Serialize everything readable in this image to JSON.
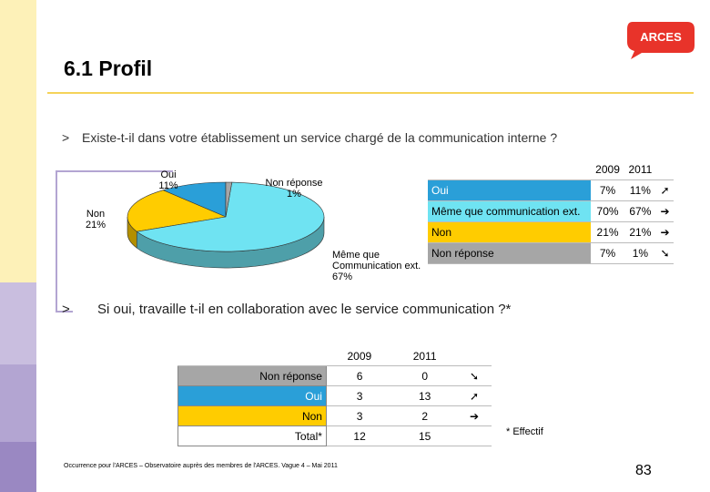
{
  "logo": "ARCES",
  "header": {
    "title": "6.1 Profil"
  },
  "question1": "Existe-t-il dans votre établissement un service chargé de la communication interne ?",
  "bullet": ">",
  "chart_data": {
    "type": "pie",
    "categories": [
      "Oui",
      "Non",
      "Même que Communication ext.",
      "Non réponse"
    ],
    "values": [
      11,
      21,
      67,
      1
    ],
    "value_labels": [
      "11%",
      "21%",
      "67%",
      "1%"
    ],
    "colors": [
      "#2a9fd8",
      "#ffcc00",
      "#6fe3f2",
      "#a6a6a6"
    ]
  },
  "table1": {
    "columns": [
      "2009",
      "2011"
    ],
    "rows": [
      [
        "Oui",
        "7%",
        "11%",
        "➚"
      ],
      [
        "Même que communication ext.",
        "70%",
        "67%",
        "➔"
      ],
      [
        "Non",
        "21%",
        "21%",
        "➔"
      ],
      [
        "Non réponse",
        "7%",
        "1%",
        "➘"
      ]
    ]
  },
  "question2": "Si oui, travaille t-il en collaboration avec le service communication ?*",
  "table2": {
    "columns": [
      "2009",
      "2011"
    ],
    "rows": [
      [
        "Non réponse",
        "6",
        "0",
        "➘"
      ],
      [
        "Oui",
        "3",
        "13",
        "➚"
      ],
      [
        "Non",
        "3",
        "2",
        "➔"
      ],
      [
        "Total*",
        "12",
        "15",
        ""
      ]
    ]
  },
  "footnote": "* Effectif",
  "source": "Occurrence pour l'ARCES – Observatoire auprès des membres de l'ARCES. Vague 4 – Mai 2011",
  "page_number": "83"
}
